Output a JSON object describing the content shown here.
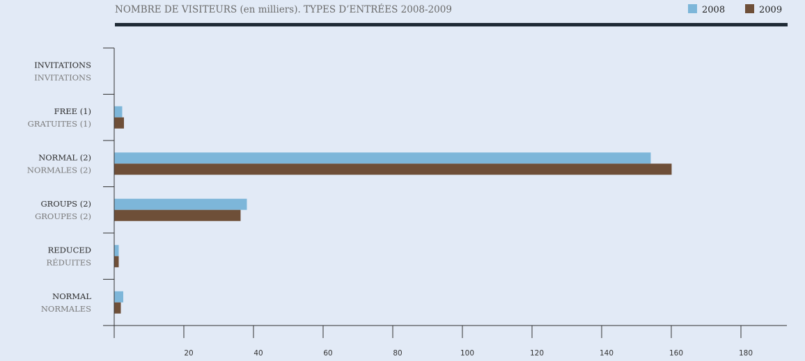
{
  "colors": {
    "series_2008": "#7db6d9",
    "series_2009": "#6e4f38",
    "rule": "#1f2b36",
    "axis": "#333333",
    "background": "#e2eaf6"
  },
  "chart_data": {
    "type": "bar",
    "orientation": "horizontal",
    "title": "NOMBRE DE VISITEURS (en milliers). TYPES D’ENTRÉES 2008-2009",
    "legend_position": "top-right",
    "categories": [
      {
        "label_en": "INVITATIONS",
        "label_fr": "INVITATIONS"
      },
      {
        "label_en": "FREE (1)",
        "label_fr": "GRATUITES (1)"
      },
      {
        "label_en": "NORMAL (2)",
        "label_fr": "NORMALES (2)"
      },
      {
        "label_en": "GROUPS (2)",
        "label_fr": "GROUPES (2)"
      },
      {
        "label_en": "REDUCED",
        "label_fr": "RÉDUITES"
      },
      {
        "label_en": "NORMAL",
        "label_fr": "NORMALES"
      }
    ],
    "series": [
      {
        "name": "2008",
        "values": [
          0,
          2.2,
          154,
          38,
          1.2,
          2.5
        ]
      },
      {
        "name": "2009",
        "values": [
          0,
          2.7,
          160,
          36.2,
          1.2,
          1.8
        ]
      }
    ],
    "xlim": [
      0,
      193
    ],
    "xticks": [
      20,
      40,
      60,
      80,
      100,
      120,
      140,
      160,
      180
    ],
    "grid": false
  }
}
